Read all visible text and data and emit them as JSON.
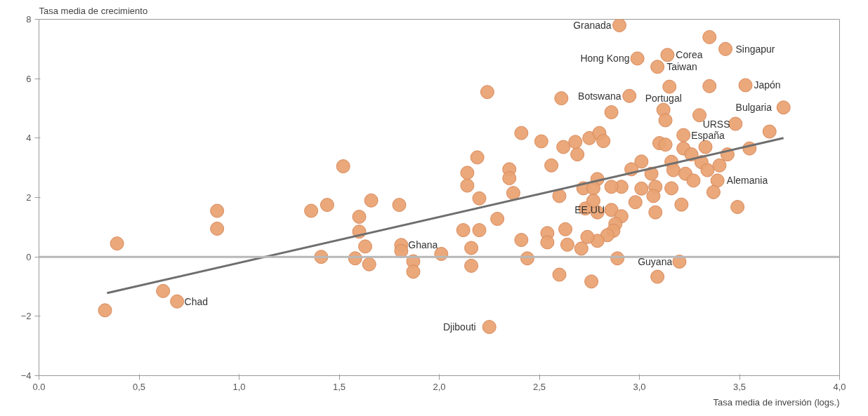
{
  "chart_data": {
    "type": "scatter",
    "xlabel": "Tasa media de inversión (logs.)",
    "ylabel": "Tasa media de crecimiento",
    "xlim": [
      0,
      4
    ],
    "ylim": [
      -4,
      8
    ],
    "xticks": [
      {
        "value": 0,
        "label": "0.0"
      },
      {
        "value": 0.5,
        "label": "0,5"
      },
      {
        "value": 1,
        "label": "1,0"
      },
      {
        "value": 1.5,
        "label": "1,5"
      },
      {
        "value": 2,
        "label": "2,0"
      },
      {
        "value": 2.5,
        "label": "2,5"
      },
      {
        "value": 3,
        "label": "3,0"
      },
      {
        "value": 3.5,
        "label": "3,5"
      },
      {
        "value": 4,
        "label": "4,0"
      }
    ],
    "yticks": [
      -4,
      -2,
      0,
      2,
      4,
      6,
      8
    ],
    "grid": false,
    "ref_lines": [
      {
        "axis": "y",
        "value": 0,
        "color": "#b8b8b8"
      }
    ],
    "series": [
      {
        "color": "#e9a374",
        "marker": "circle",
        "x": [
          0.33,
          0.39,
          0.62,
          0.69,
          0.89,
          0.89,
          1.36,
          1.44,
          1.41,
          1.52,
          1.6,
          1.6,
          1.58,
          1.66,
          1.63,
          1.65,
          1.8,
          1.81,
          1.81,
          1.87,
          1.87,
          2.01,
          2.16,
          2.16,
          2.12,
          2.2,
          2.29,
          2.41,
          2.44,
          2.6,
          2.2,
          2.14,
          2.14,
          2.19,
          2.24,
          2.35,
          2.35,
          2.37,
          2.41,
          2.51,
          2.56,
          2.61,
          2.62,
          2.6,
          2.25,
          2.9,
          3.35,
          3.43,
          2.99,
          3.14,
          3.09,
          3.15,
          3.35,
          3.53,
          2.95,
          2.86,
          3.12,
          3.13,
          3.3,
          3.48,
          3.72,
          3.65,
          3.55,
          3.22,
          3.1,
          2.69,
          2.68,
          2.75,
          2.8,
          2.82,
          3.13,
          3.22,
          3.33,
          3.26,
          3.44,
          3.31,
          3.4,
          3.16,
          3.17,
          3.23,
          3.27,
          3.34,
          3.39,
          3.37,
          3.49,
          3.21,
          3.16,
          3.08,
          3.07,
          3.08,
          3.01,
          3.06,
          3.01,
          2.96,
          2.98,
          2.91,
          2.86,
          2.79,
          2.72,
          2.77,
          2.73,
          2.79,
          2.77,
          2.86,
          2.91,
          2.88,
          2.87,
          2.84,
          2.79,
          2.74,
          2.71,
          2.64,
          2.63,
          2.54,
          2.54,
          2.89,
          2.76,
          3.2,
          3.09
        ],
        "values": [
          -1.8,
          0.45,
          -1.15,
          -1.5,
          1.55,
          0.95,
          1.55,
          1.75,
          0.0,
          3.05,
          1.35,
          0.85,
          -0.05,
          1.9,
          0.35,
          -0.25,
          1.75,
          0.4,
          0.2,
          -0.15,
          -0.5,
          0.1,
          0.3,
          -0.3,
          0.9,
          0.9,
          1.28,
          0.57,
          -0.05,
          -0.6,
          1.97,
          2.83,
          2.4,
          3.35,
          5.55,
          2.95,
          2.65,
          2.15,
          4.17,
          3.89,
          3.08,
          5.34,
          3.7,
          2.05,
          -2.36,
          7.8,
          7.4,
          7.0,
          6.68,
          6.8,
          6.4,
          5.73,
          5.75,
          5.78,
          5.42,
          4.87,
          4.95,
          4.6,
          4.77,
          4.48,
          5.03,
          4.22,
          3.65,
          4.1,
          3.83,
          3.45,
          3.87,
          4.0,
          4.17,
          3.9,
          3.78,
          3.65,
          3.7,
          3.45,
          3.45,
          3.19,
          3.08,
          3.2,
          2.92,
          2.8,
          2.57,
          2.92,
          2.57,
          2.18,
          1.68,
          1.76,
          2.31,
          2.36,
          2.05,
          1.5,
          2.3,
          2.8,
          3.21,
          2.95,
          1.84,
          2.36,
          2.36,
          2.62,
          2.31,
          2.31,
          1.63,
          1.5,
          1.89,
          1.58,
          1.37,
          1.11,
          0.88,
          0.73,
          0.54,
          0.67,
          0.28,
          0.41,
          0.93,
          0.8,
          0.49,
          -0.05,
          -0.83,
          -0.16,
          -0.67
        ]
      },
      {
        "type": "line",
        "color": "#6e6e6e",
        "x": [
          0.34,
          3.72
        ],
        "values": [
          -1.22,
          4.0
        ]
      }
    ],
    "annotations": [
      {
        "text": "Granada",
        "x": 2.9,
        "y": 7.8
      },
      {
        "text": "Corea",
        "x": 3.14,
        "y": 6.8
      },
      {
        "text": "Singapur",
        "x": 3.43,
        "y": 7.0
      },
      {
        "text": "Hong Kong",
        "x": 2.99,
        "y": 6.68
      },
      {
        "text": "Taiwan",
        "x": 3.09,
        "y": 6.4
      },
      {
        "text": "Japón",
        "x": 3.53,
        "y": 5.78
      },
      {
        "text": "Botswana",
        "x": 2.95,
        "y": 5.42
      },
      {
        "text": "Bulgaria",
        "x": 3.72,
        "y": 5.03
      },
      {
        "text": "Portugal",
        "x": 3.12,
        "y": 4.95
      },
      {
        "text": "URSS",
        "x": 3.48,
        "y": 4.48
      },
      {
        "text": "España",
        "x": 3.22,
        "y": 4.1
      },
      {
        "text": "Alemania",
        "x": 3.39,
        "y": 2.57
      },
      {
        "text": "EE.UU",
        "x": 2.86,
        "y": 1.58
      },
      {
        "text": "Ghana",
        "x": 1.81,
        "y": 0.4
      },
      {
        "text": "Guyana",
        "x": 3.2,
        "y": -0.16
      },
      {
        "text": "Chad",
        "x": 0.69,
        "y": -1.5
      },
      {
        "text": "Djibouti",
        "x": 2.25,
        "y": -2.36
      }
    ]
  }
}
